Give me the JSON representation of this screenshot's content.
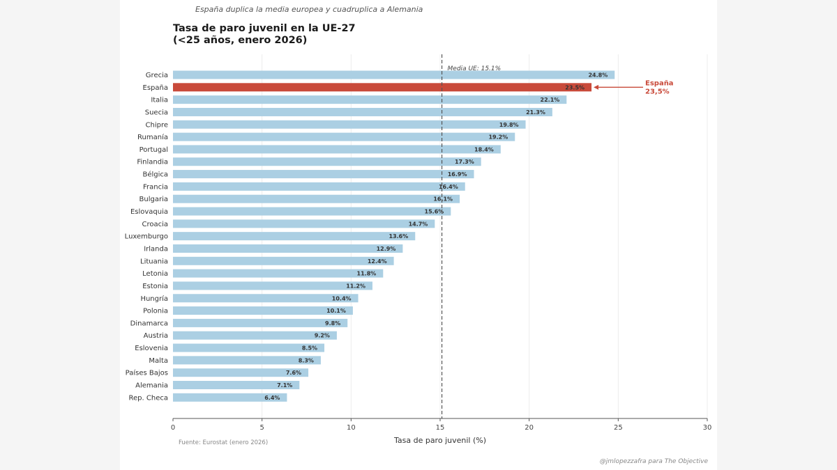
{
  "header": {
    "subtitle": "España duplica la media europea y cuadruplica a Alemania",
    "title_line1": "Tasa de paro juvenil en la UE-27",
    "title_line2": "(<25 años, enero 2026)"
  },
  "footer": {
    "source": "Fuente: Eurostat (enero 2026)",
    "credit": "@jmlopezzafra para The Objective"
  },
  "colors": {
    "bar_default": "#abcfe3",
    "bar_highlight": "#c94a3a",
    "mean_line": "#555555",
    "axis": "#555555",
    "grid": "#ececec"
  },
  "chart_data": {
    "type": "bar",
    "orientation": "horizontal",
    "title": "Tasa de paro juvenil en la UE-27 (<25 años, enero 2026)",
    "xlabel": "Tasa de paro juvenil (%)",
    "ylabel": "",
    "xlim": [
      0,
      30
    ],
    "xticks": [
      0,
      5,
      10,
      15,
      20,
      25,
      30
    ],
    "grid": "vertical",
    "categories": [
      "Grecia",
      "España",
      "Italia",
      "Suecia",
      "Chipre",
      "Rumanía",
      "Portugal",
      "Finlandia",
      "Bélgica",
      "Francia",
      "Bulgaria",
      "Eslovaquia",
      "Croacia",
      "Luxemburgo",
      "Irlanda",
      "Lituania",
      "Letonia",
      "Estonia",
      "Hungría",
      "Polonia",
      "Dinamarca",
      "Austria",
      "Eslovenia",
      "Malta",
      "Países Bajos",
      "Alemania",
      "Rep. Checa"
    ],
    "values": [
      24.8,
      23.5,
      22.1,
      21.3,
      19.8,
      19.2,
      18.4,
      17.3,
      16.9,
      16.4,
      16.1,
      15.6,
      14.7,
      13.6,
      12.9,
      12.4,
      11.8,
      11.2,
      10.4,
      10.1,
      9.8,
      9.2,
      8.5,
      8.3,
      7.6,
      7.1,
      6.4
    ],
    "value_labels": [
      "24.8%",
      "23.5%",
      "22.1%",
      "21.3%",
      "19.8%",
      "19.2%",
      "18.4%",
      "17.3%",
      "16.9%",
      "16.4%",
      "16.1%",
      "15.6%",
      "14.7%",
      "13.6%",
      "12.9%",
      "12.4%",
      "11.8%",
      "11.2%",
      "10.4%",
      "10.1%",
      "9.8%",
      "9.2%",
      "8.5%",
      "8.3%",
      "7.6%",
      "7.1%",
      "6.4%"
    ],
    "highlight": "España",
    "mean": {
      "value": 15.1,
      "label": "Media UE: 15.1%"
    },
    "annotation": {
      "target": "España",
      "line1": "España",
      "line2": "23,5%"
    }
  }
}
